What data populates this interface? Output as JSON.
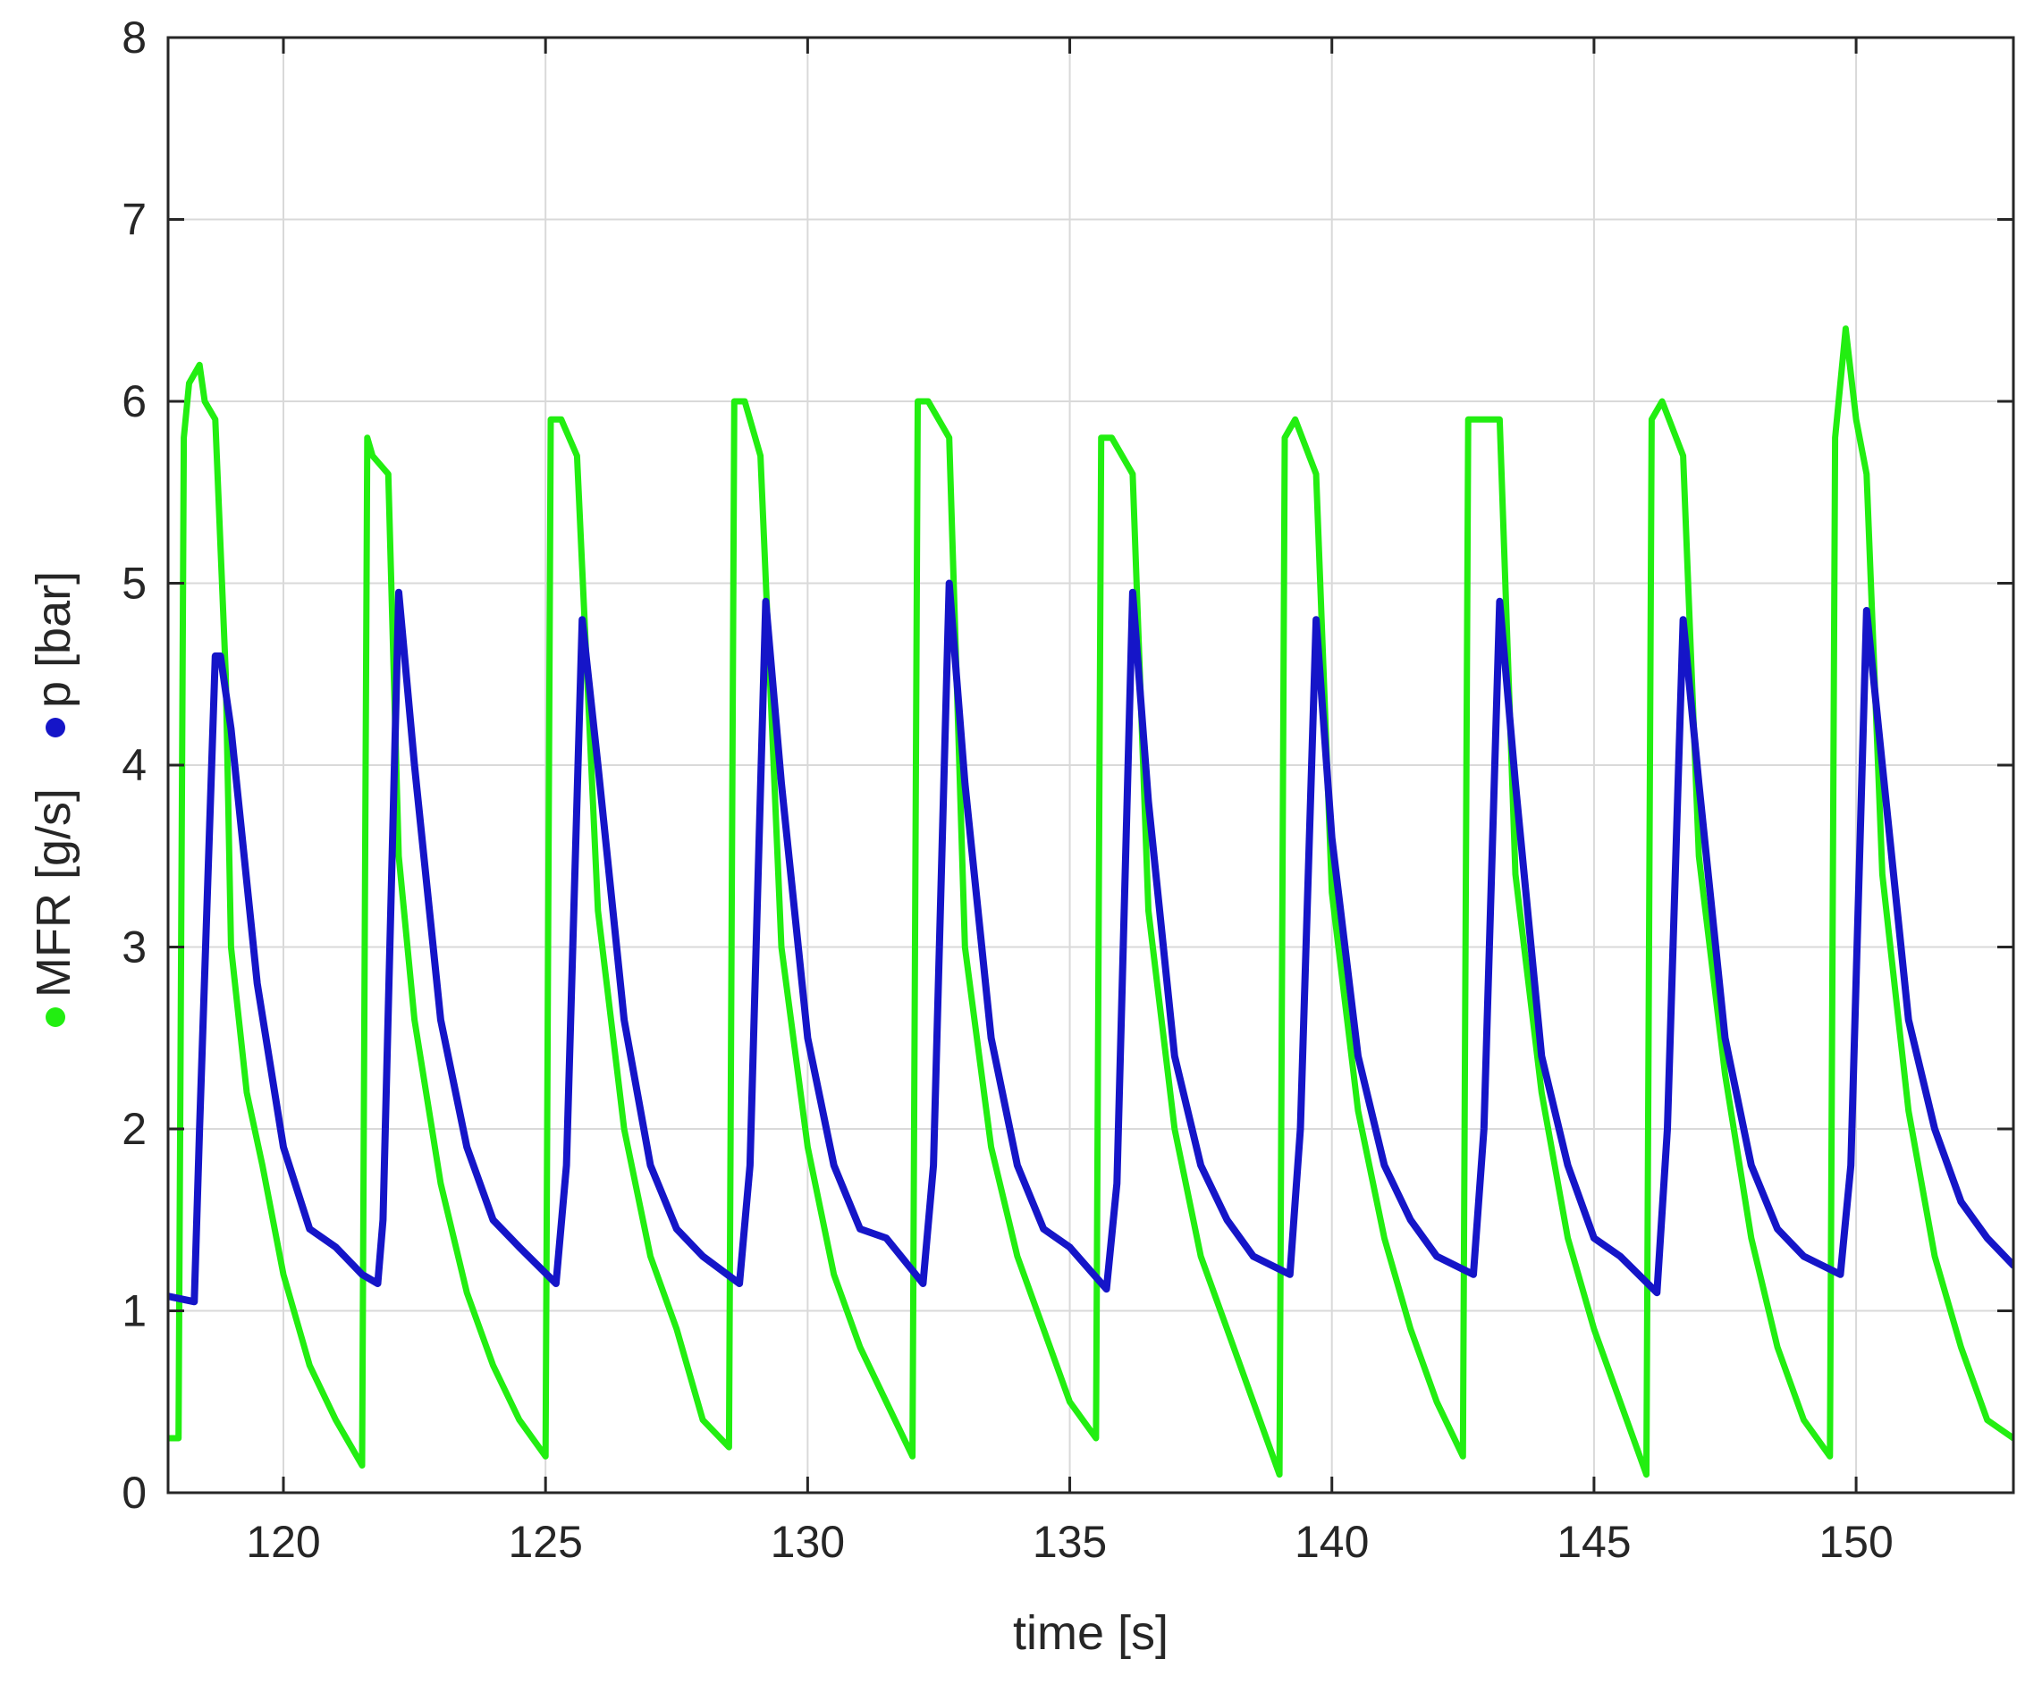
{
  "chart_data": {
    "type": "line",
    "xlabel": "time [s]",
    "ylabel_parts": [
      {
        "marker_color": "#22ee11",
        "text": "MFR [g/s]"
      },
      {
        "marker_color": "#1515c8",
        "text": "p [bar]"
      }
    ],
    "xlim": [
      117.8,
      153.0
    ],
    "ylim": [
      0,
      8
    ],
    "xticks": [
      120,
      125,
      130,
      135,
      140,
      145,
      150
    ],
    "yticks": [
      0,
      1,
      2,
      3,
      4,
      5,
      6,
      7,
      8
    ],
    "grid": true,
    "cycle_period_s": 3.5,
    "series": [
      {
        "label_on_axis": "MFR [g/s]",
        "color": "#22ee11",
        "x": [
          117.8,
          118.0,
          118.1,
          118.2,
          118.4,
          118.5,
          118.7,
          118.9,
          119.0,
          119.3,
          119.6,
          120.0,
          120.5,
          121.0,
          121.2,
          121.5,
          121.6,
          121.7,
          122.0,
          122.2,
          122.5,
          123.0,
          123.5,
          124.0,
          124.5,
          125.0,
          125.1,
          125.3,
          125.6,
          126.0,
          126.5,
          127.0,
          127.5,
          128.0,
          128.5,
          128.6,
          128.8,
          129.1,
          129.5,
          130.0,
          130.5,
          131.0,
          131.5,
          132.0,
          132.1,
          132.3,
          132.7,
          133.0,
          133.5,
          134.0,
          134.5,
          135.0,
          135.5,
          135.6,
          135.8,
          136.2,
          136.5,
          137.0,
          137.5,
          138.0,
          138.5,
          139.0,
          139.1,
          139.3,
          139.7,
          140.0,
          140.5,
          141.0,
          141.5,
          142.0,
          142.5,
          142.6,
          142.8,
          143.2,
          143.5,
          144.0,
          144.5,
          145.0,
          145.5,
          146.0,
          146.1,
          146.3,
          146.7,
          147.0,
          147.5,
          148.0,
          148.5,
          149.0,
          149.5,
          149.6,
          149.8,
          150.0,
          150.2,
          150.5,
          151.0,
          151.5,
          152.0,
          152.5,
          153.0
        ],
        "y": [
          0.3,
          0.3,
          5.8,
          6.1,
          6.2,
          6.0,
          5.9,
          4.5,
          3.0,
          2.2,
          1.8,
          1.2,
          0.7,
          0.4,
          0.3,
          0.15,
          5.8,
          5.7,
          5.6,
          3.5,
          2.6,
          1.7,
          1.1,
          0.7,
          0.4,
          0.2,
          5.9,
          5.9,
          5.7,
          3.2,
          2.0,
          1.3,
          0.9,
          0.4,
          0.25,
          6.0,
          6.0,
          5.7,
          3.0,
          1.9,
          1.2,
          0.8,
          0.5,
          0.2,
          6.0,
          6.0,
          5.8,
          3.0,
          1.9,
          1.3,
          0.9,
          0.5,
          0.3,
          5.8,
          5.8,
          5.6,
          3.2,
          2.0,
          1.3,
          0.9,
          0.5,
          0.1,
          5.8,
          5.9,
          5.6,
          3.3,
          2.1,
          1.4,
          0.9,
          0.5,
          0.2,
          5.9,
          5.9,
          5.9,
          3.4,
          2.2,
          1.4,
          0.9,
          0.5,
          0.1,
          5.9,
          6.0,
          5.7,
          3.5,
          2.3,
          1.4,
          0.8,
          0.4,
          0.2,
          5.8,
          6.4,
          5.9,
          5.6,
          3.4,
          2.1,
          1.3,
          0.8,
          0.4,
          0.3
        ]
      },
      {
        "label_on_axis": "p [bar]",
        "color": "#1515c8",
        "x": [
          117.8,
          118.3,
          118.4,
          118.7,
          118.8,
          119.0,
          119.5,
          120.0,
          120.5,
          121.0,
          121.5,
          121.8,
          121.9,
          122.2,
          122.5,
          123.0,
          123.5,
          124.0,
          124.5,
          125.2,
          125.4,
          125.7,
          126.0,
          126.5,
          127.0,
          127.5,
          128.0,
          128.7,
          128.9,
          129.2,
          129.5,
          130.0,
          130.5,
          131.0,
          131.5,
          132.2,
          132.4,
          132.7,
          133.0,
          133.5,
          134.0,
          134.5,
          135.0,
          135.7,
          135.9,
          136.2,
          136.5,
          137.0,
          137.5,
          138.0,
          138.5,
          139.2,
          139.4,
          139.7,
          140.0,
          140.5,
          141.0,
          141.5,
          142.0,
          142.7,
          142.9,
          143.2,
          143.5,
          144.0,
          144.5,
          145.0,
          145.5,
          146.2,
          146.4,
          146.7,
          147.0,
          147.5,
          148.0,
          148.5,
          149.0,
          149.7,
          149.9,
          150.2,
          150.5,
          151.0,
          151.5,
          152.0,
          152.5,
          153.0
        ],
        "y": [
          1.08,
          1.05,
          2.0,
          4.6,
          4.6,
          4.2,
          2.8,
          1.9,
          1.45,
          1.35,
          1.2,
          1.15,
          1.5,
          4.95,
          4.0,
          2.6,
          1.9,
          1.5,
          1.35,
          1.15,
          1.8,
          4.8,
          4.0,
          2.6,
          1.8,
          1.45,
          1.3,
          1.15,
          1.8,
          4.9,
          3.9,
          2.5,
          1.8,
          1.45,
          1.4,
          1.15,
          1.8,
          5.0,
          3.9,
          2.5,
          1.8,
          1.45,
          1.35,
          1.12,
          1.7,
          4.95,
          3.8,
          2.4,
          1.8,
          1.5,
          1.3,
          1.2,
          2.0,
          4.8,
          3.6,
          2.4,
          1.8,
          1.5,
          1.3,
          1.2,
          2.0,
          4.9,
          3.9,
          2.4,
          1.8,
          1.4,
          1.3,
          1.1,
          2.0,
          4.8,
          3.9,
          2.5,
          1.8,
          1.45,
          1.3,
          1.2,
          1.8,
          4.85,
          4.0,
          2.6,
          2.0,
          1.6,
          1.4,
          1.25
        ]
      }
    ]
  }
}
